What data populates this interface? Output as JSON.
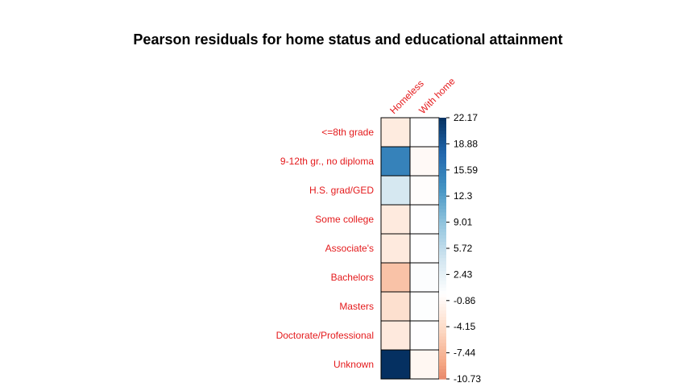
{
  "chart_data": {
    "type": "heatmap",
    "title": "Pearson residuals for home status and educational attainment",
    "rows": [
      "<=8th grade",
      "9-12th gr., no diploma",
      "H.S. grad/GED",
      "Some college",
      "Associate's",
      "Bachelors",
      "Masters",
      "Doctorate/Professional",
      "Unknown"
    ],
    "columns": [
      "Homeless",
      "With home"
    ],
    "values": [
      [
        -2.5,
        0.1
      ],
      [
        15.0,
        -0.7
      ],
      [
        4.0,
        -0.2
      ],
      [
        -2.6,
        0.1
      ],
      [
        -2.6,
        0.1
      ],
      [
        -6.5,
        0.3
      ],
      [
        -3.8,
        0.2
      ],
      [
        -2.7,
        0.1
      ],
      [
        22.17,
        -1.0
      ]
    ],
    "colorbar": {
      "ticks": [
        "22.17",
        "18.88",
        "15.59",
        "12.3",
        "9.01",
        "5.72",
        "2.43",
        "-0.86",
        "-4.15",
        "-7.44",
        "-10.73"
      ],
      "min": -10.73,
      "max": 22.17
    },
    "label_color": "#E41A1C",
    "color_low": "#67001F",
    "color_mid": "#FFFFFF",
    "color_high": "#053061",
    "grid": true,
    "legend": "right"
  }
}
